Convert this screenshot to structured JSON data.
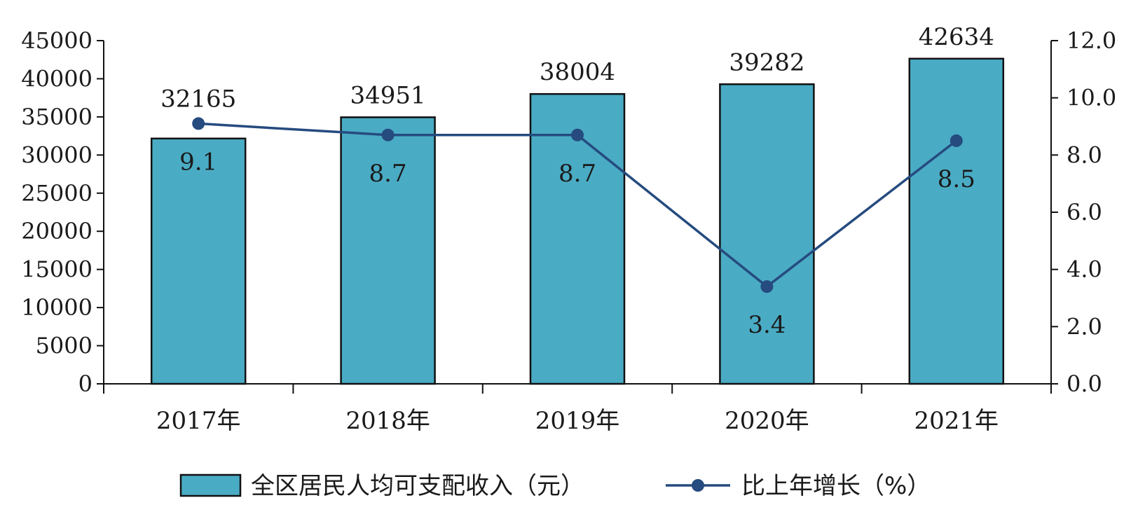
{
  "chart_data": {
    "type": "bar",
    "categories": [
      "2017年",
      "2018年",
      "2019年",
      "2020年",
      "2021年"
    ],
    "series": [
      {
        "name": "全区居民人均可支配收入（元）",
        "type": "bar",
        "axis": "left",
        "values": [
          32165,
          34951,
          38004,
          39282,
          42634
        ],
        "value_labels": [
          "32165",
          "34951",
          "38004",
          "39282",
          "42634"
        ],
        "color": "#4aabc4"
      },
      {
        "name": "比上年增长（%）",
        "type": "line",
        "axis": "right",
        "values": [
          9.1,
          8.7,
          8.7,
          3.4,
          8.5
        ],
        "value_labels": [
          "9.1",
          "8.7",
          "8.7",
          "3.4",
          "8.5"
        ],
        "color": "#254b7f"
      }
    ],
    "left_axis": {
      "ylim": [
        0,
        45000
      ],
      "ticks": [
        "0",
        "5000",
        "10000",
        "15000",
        "20000",
        "25000",
        "30000",
        "35000",
        "40000",
        "45000"
      ]
    },
    "right_axis": {
      "ylim": [
        0,
        12
      ],
      "ticks": [
        "0.0",
        "2.0",
        "4.0",
        "6.0",
        "8.0",
        "10.0",
        "12.0"
      ]
    },
    "title": "",
    "xlabel": "",
    "ylabel": "",
    "grid": false,
    "legend_position": "bottom"
  }
}
